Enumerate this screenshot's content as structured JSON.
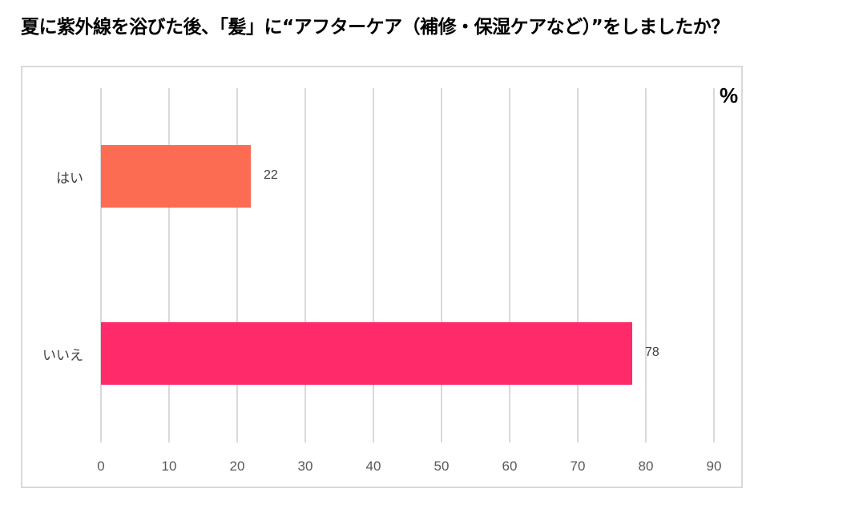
{
  "title": "夏に紫外線を浴びた後、「髪」に“アフターケア（補修・保湿ケアなど）”をしましたか？",
  "unit": "%",
  "chart_data": {
    "type": "bar",
    "orientation": "horizontal",
    "title": "夏に紫外線を浴びた後、「髪」に“アフターケア（補修・保湿ケアなど）”をしましたか？",
    "categories": [
      "はい",
      "いいえ"
    ],
    "values": [
      22,
      78
    ],
    "colors": [
      "#fc6c52",
      "#ff2a6a"
    ],
    "xlabel": "",
    "ylabel": "",
    "unit_label": "%",
    "xlim": [
      0,
      90
    ],
    "x_ticks": [
      "0",
      "10",
      "20",
      "30",
      "40",
      "50",
      "60",
      "70",
      "80",
      "90"
    ],
    "grid": true,
    "legend": "none",
    "data_labels": [
      "22",
      "78"
    ]
  }
}
